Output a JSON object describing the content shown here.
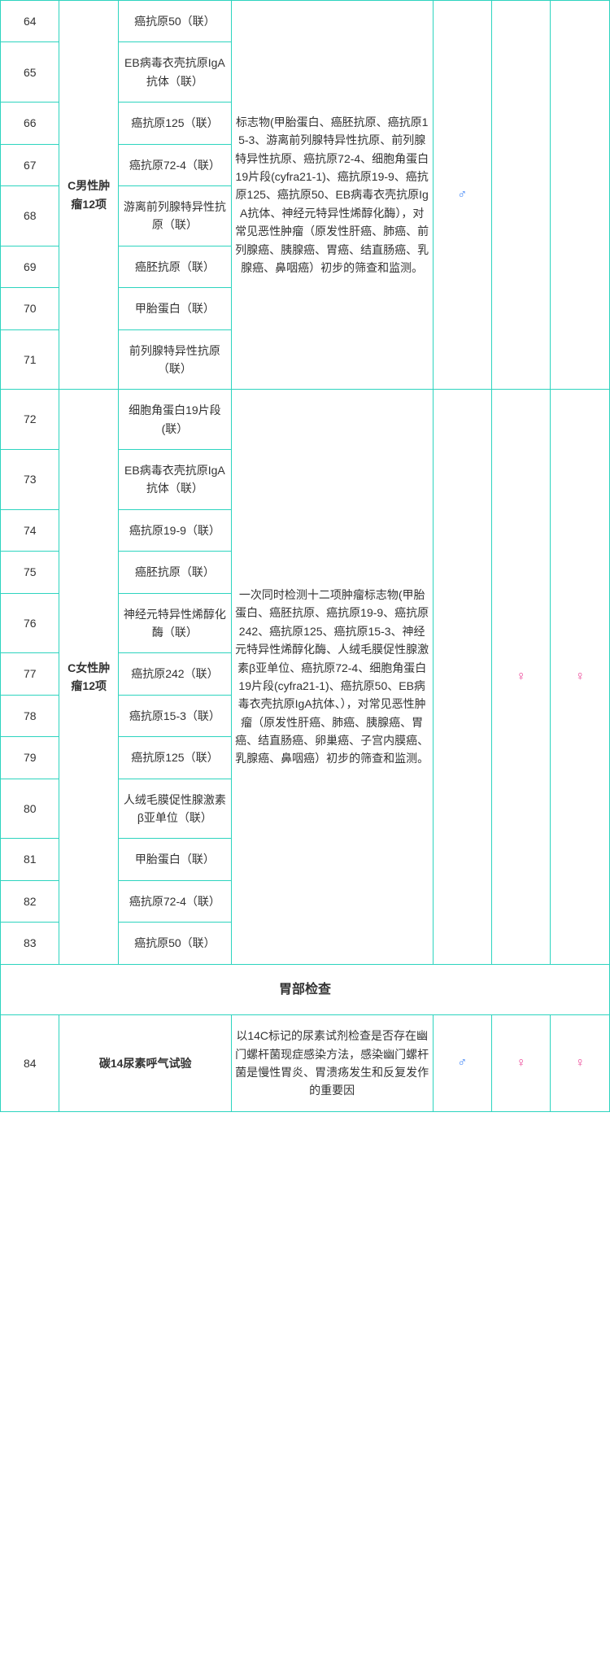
{
  "male_symbol": "♂",
  "female_symbol": "♀",
  "group1": {
    "category": "C男性肿瘤12项",
    "desc": "标志物(甲胎蛋白、癌胚抗原、癌抗原15-3、游离前列腺特异性抗原、前列腺特异性抗原、癌抗原72-4、细胞角蛋白19片段(cyfra21-1)、癌抗原19-9、癌抗原125、癌抗原50、EB病毒衣壳抗原IgA抗体、神经元特异性烯醇化酶），对常见恶性肿瘤（原发性肝癌、肺癌、前列腺癌、胰腺癌、胃癌、结直肠癌、乳腺癌、鼻咽癌）初步的筛查和监测。",
    "rows": [
      {
        "num": "64",
        "item": "癌抗原50（联）"
      },
      {
        "num": "65",
        "item": "EB病毒衣壳抗原IgA抗体（联）"
      },
      {
        "num": "66",
        "item": "癌抗原125（联）"
      },
      {
        "num": "67",
        "item": "癌抗原72-4（联）"
      },
      {
        "num": "68",
        "item": "游离前列腺特异性抗原（联）"
      },
      {
        "num": "69",
        "item": "癌胚抗原（联）"
      },
      {
        "num": "70",
        "item": "甲胎蛋白（联）"
      },
      {
        "num": "71",
        "item": "前列腺特异性抗原（联）"
      }
    ]
  },
  "group2": {
    "category": "C女性肿瘤12项",
    "desc": "一次同时检测十二项肿瘤标志物(甲胎蛋白、癌胚抗原、癌抗原19-9、癌抗原242、癌抗原125、癌抗原15-3、神经元特异性烯醇化酶、人绒毛膜促性腺激素β亚单位、癌抗原72-4、细胞角蛋白19片段(cyfra21-1)、癌抗原50、EB病毒衣壳抗原IgA抗体、），对常见恶性肿瘤（原发性肝癌、肺癌、胰腺癌、胃癌、结直肠癌、卵巢癌、子宫内膜癌、乳腺癌、鼻咽癌）初步的筛查和监测。",
    "rows": [
      {
        "num": "72",
        "item": "细胞角蛋白19片段(联）"
      },
      {
        "num": "73",
        "item": "EB病毒衣壳抗原IgA抗体（联）"
      },
      {
        "num": "74",
        "item": "癌抗原19-9（联）"
      },
      {
        "num": "75",
        "item": "癌胚抗原（联）"
      },
      {
        "num": "76",
        "item": "神经元特异性烯醇化酶（联）"
      },
      {
        "num": "77",
        "item": "癌抗原242（联）"
      },
      {
        "num": "78",
        "item": "癌抗原15-3（联）"
      },
      {
        "num": "79",
        "item": "癌抗原125（联）"
      },
      {
        "num": "80",
        "item": "人绒毛膜促性腺激素β亚单位（联）"
      },
      {
        "num": "81",
        "item": "甲胎蛋白（联）"
      },
      {
        "num": "82",
        "item": "癌抗原72-4（联）"
      },
      {
        "num": "83",
        "item": "癌抗原50（联）"
      }
    ]
  },
  "section_header": "胃部检查",
  "row84": {
    "num": "84",
    "item": "碳14尿素呼气试验",
    "desc": "以14C标记的尿素试剂检查是否存在幽门螺杆菌现症感染方法，感染幽门螺杆菌是慢性胃炎、胃溃疡发生和反复发作的重要因"
  },
  "colors": {
    "border": "#2dd4bf",
    "male": "#3b82f6",
    "female": "#ec4899",
    "text": "#333333",
    "background": "#ffffff"
  }
}
